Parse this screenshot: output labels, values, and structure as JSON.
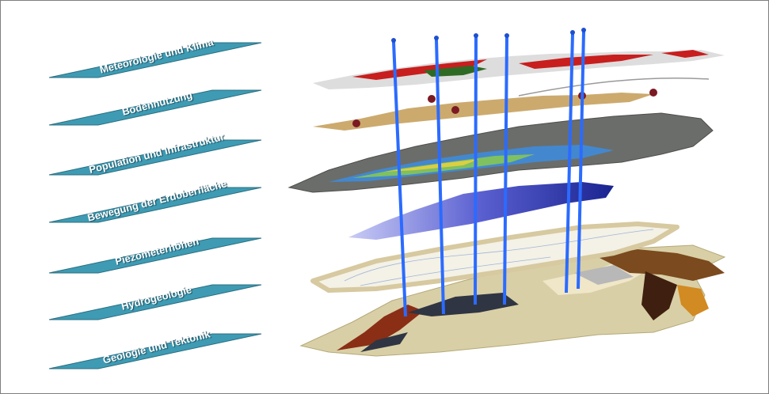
{
  "layers": [
    {
      "label": "Meteorologie und Klima",
      "icon": "climate-layer"
    },
    {
      "label": "Bodennutzung",
      "icon": "land-use-layer"
    },
    {
      "label": "Population und Infrastruktur",
      "icon": "infrastructure-layer"
    },
    {
      "label": "Bewegung der Erdoberfläche",
      "icon": "ground-motion-layer"
    },
    {
      "label": "Piezometerhöhen",
      "icon": "piezometric-layer"
    },
    {
      "label": "Hydrogeologie",
      "icon": "hydrogeology-layer"
    },
    {
      "label": "Geologie und Tektonik",
      "icon": "geology-layer"
    }
  ],
  "colors": {
    "label_fill": "#3e9bb3",
    "label_stroke": "#2a6f82",
    "well_blue": "#2b6bff",
    "geology_base": "#d9cfa6",
    "terrain_grey": "#6b6d6a"
  }
}
